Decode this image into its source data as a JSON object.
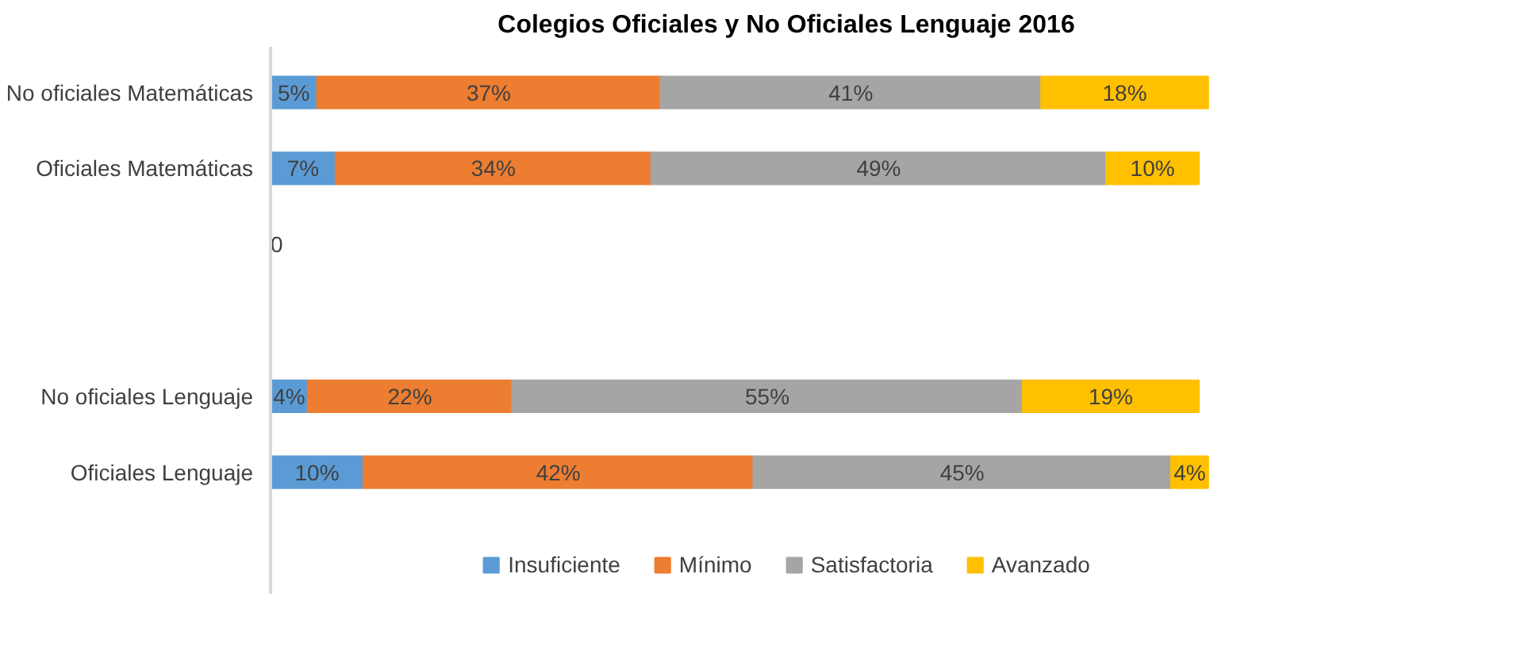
{
  "chart_data": {
    "type": "bar",
    "orientation": "horizontal",
    "stacked": true,
    "title": "Colegios Oficiales y No Oficiales Lenguaje 2016",
    "categories": [
      "No oficiales Matemáticas",
      "Oficiales Matemáticas",
      null,
      null,
      "No oficiales Lenguaje",
      "Oficiales Lenguaje"
    ],
    "tick_labels": "y",
    "grid": false,
    "legend": "bottom",
    "series": [
      {
        "name": "Insuficiente",
        "color": "#5b9bd5",
        "values": [
          5,
          7,
          0,
          null,
          4,
          10
        ],
        "value_labels": [
          "5%",
          "7%",
          "0",
          null,
          "4%",
          "10%"
        ]
      },
      {
        "name": "Mínimo",
        "color": "#ed7d31",
        "values": [
          37,
          34,
          null,
          null,
          22,
          42
        ],
        "value_labels": [
          "37%",
          "34%",
          null,
          null,
          "22%",
          "42%"
        ]
      },
      {
        "name": "Satisfactoria",
        "color": "#a5a5a5",
        "values": [
          41,
          49,
          null,
          null,
          55,
          45
        ],
        "value_labels": [
          "41%",
          "49%",
          null,
          null,
          "55%",
          "45%"
        ]
      },
      {
        "name": "Avanzado",
        "color": "#ffc000",
        "values": [
          18,
          10,
          null,
          null,
          19,
          4
        ],
        "value_labels": [
          "18%",
          "10%",
          null,
          null,
          "19%",
          "4%"
        ]
      }
    ]
  }
}
